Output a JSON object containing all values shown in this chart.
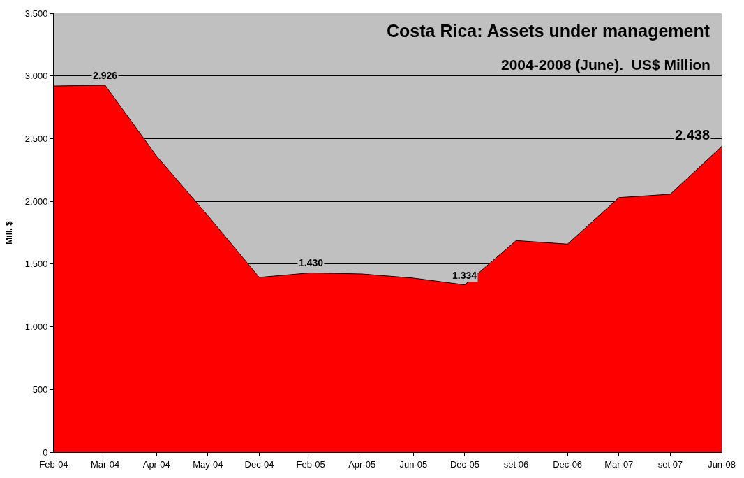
{
  "chart_data": {
    "type": "area",
    "title": "Costa Rica: Assets under management",
    "subtitle": "2004-2008 (June).  US$ Million",
    "ylabel": "Mill. $",
    "categories": [
      "Feb-04",
      "Mar-04",
      "Apr-04",
      "May-04",
      "Dec-04",
      "Feb-05",
      "Apr-05",
      "Jun-05",
      "Dec-05",
      "set 06",
      "Dec-06",
      "Mar-07",
      "set 07",
      "Jun-08"
    ],
    "series": [
      {
        "color": "#ff0000",
        "values": [
          2920,
          2926,
          2362,
          1886,
          1394,
          1430,
          1421,
          1388,
          1334,
          1687,
          1659,
          2030,
          2057,
          2438
        ],
        "value_labels": [
          null,
          "2.926",
          null,
          null,
          null,
          "1.430",
          null,
          null,
          "1.334",
          null,
          null,
          null,
          null,
          "2.438"
        ]
      }
    ],
    "ylim": [
      0,
      3500
    ],
    "yticks": [
      0,
      500,
      {
        "value": 1000,
        "label": "1.000"
      },
      {
        "value": 1500,
        "label": "1.500"
      },
      {
        "value": 2000,
        "label": "2.000"
      },
      {
        "value": 2500,
        "label": "2.500"
      },
      {
        "value": 3000,
        "label": "3.000"
      },
      {
        "value": 3500,
        "label": "3.500"
      }
    ],
    "grid": "y"
  }
}
